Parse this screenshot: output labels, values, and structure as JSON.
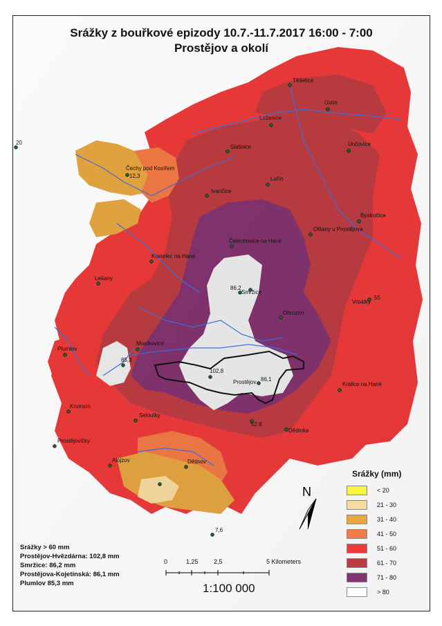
{
  "title": {
    "line1": "Srážky z bouřkové epizody 10.7.-11.7.2017 16:00 - 7:00",
    "line2": "Prostějov a okolí"
  },
  "places": [
    {
      "id": "tesetice",
      "name": "Těšetice"
    },
    {
      "id": "ustin",
      "name": "Ústín"
    },
    {
      "id": "luzenice",
      "name": "Luženice"
    },
    {
      "id": "unesov",
      "name": "Unčovice"
    },
    {
      "id": "stichovice",
      "name": "Slatinice"
    },
    {
      "id": "cechy",
      "name": "Čechy pod Kosířem"
    },
    {
      "id": "lutin",
      "name": "Luťín"
    },
    {
      "id": "ivanovice",
      "name": "Ivančice"
    },
    {
      "id": "bystrovany",
      "name": "Bystročice"
    },
    {
      "id": "olsany",
      "name": "Olšany u Prostějova"
    },
    {
      "id": "celechovice",
      "name": "Čelechovice na Hané"
    },
    {
      "id": "kostelec",
      "name": "Kostelec na Hané"
    },
    {
      "id": "smrzice",
      "name": "Smržice"
    },
    {
      "id": "lesany",
      "name": "Lešany"
    },
    {
      "id": "vrbatky",
      "name": "Vrbátky"
    },
    {
      "id": "ohrozim",
      "name": "Ohrozim"
    },
    {
      "id": "plumlov",
      "name": "Plumlov"
    },
    {
      "id": "mostkovice",
      "name": "Mostkovice"
    },
    {
      "id": "prostejov",
      "name": "Prostějov"
    },
    {
      "id": "kralice",
      "name": "Kralice na Hané"
    },
    {
      "id": "krumsin",
      "name": "Krumsín"
    },
    {
      "id": "seloutky",
      "name": "Seloutky"
    },
    {
      "id": "prostejovicky",
      "name": "Prostějovičky"
    },
    {
      "id": "dedinka",
      "name": "Dědinka"
    },
    {
      "id": "alojzov",
      "name": "Alojzov"
    },
    {
      "id": "otinoves",
      "name": "Dětinov"
    }
  ],
  "gauges": [
    {
      "id": "g20",
      "value": "20"
    },
    {
      "id": "g123",
      "value": "12,3"
    },
    {
      "id": "g862",
      "value": "86,2"
    },
    {
      "id": "g55",
      "value": "55"
    },
    {
      "id": "g853",
      "value": "85,3"
    },
    {
      "id": "g1028",
      "value": "102,8"
    },
    {
      "id": "g861",
      "value": "86,1"
    },
    {
      "id": "g528",
      "value": "52,8"
    },
    {
      "id": "g76",
      "value": "7,6"
    }
  ],
  "legend": {
    "title": "Srážky (mm)",
    "items": [
      {
        "label": "< 20",
        "color": "#f5f542"
      },
      {
        "label": "21 - 30",
        "color": "#f7dca0"
      },
      {
        "label": "31 - 40",
        "color": "#e6a640"
      },
      {
        "label": "41 - 50",
        "color": "#f27a45"
      },
      {
        "label": "51 - 60",
        "color": "#ee3a3a"
      },
      {
        "label": "61 - 70",
        "color": "#bd3c41"
      },
      {
        "label": "71 - 80",
        "color": "#83336f"
      },
      {
        "label": "> 80",
        "color": "#ffffff"
      }
    ]
  },
  "stats": [
    "Srážky > 60 mm",
    "Prostějov-Hvězdárna: 102,8 mm",
    "Smržice: 86,2 mm",
    "Prostějova-Kojetínská: 86,1 mm",
    "Plumlov 85,3 mm"
  ],
  "scale": {
    "labels": [
      "0",
      "1,25",
      "2,5",
      "5 Kilometers"
    ],
    "ratio": "1:100 000"
  },
  "north": {
    "label": "N"
  }
}
